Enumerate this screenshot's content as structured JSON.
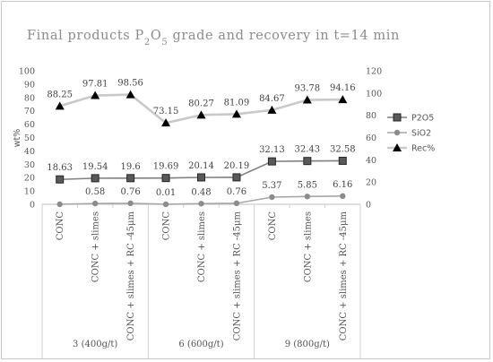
{
  "chart_data": {
    "type": "line",
    "title": {
      "prefix": "Final products P",
      "sub1": "2",
      "mid": "O",
      "sub2": "5",
      "suffix": " grade and recovery in t=14 min"
    },
    "ylabel_left": "wt%",
    "ylim_left": [
      0,
      100
    ],
    "yticks_left": [
      0,
      10,
      20,
      30,
      40,
      50,
      60,
      70,
      80,
      90,
      100
    ],
    "ylim_right": [
      0,
      120
    ],
    "yticks_right": [
      0,
      20,
      40,
      60,
      80,
      100,
      120
    ],
    "grid": false,
    "legend_position": "right",
    "categories": [
      "CONC",
      "CONC + slimes",
      "CONC + slimes + RC -45μm",
      "CONC",
      "CONC + slimes",
      "CONC + slimes + RC -45μm",
      "CONC",
      "CONC + slimes",
      "CONC + slimes + RC -45μm"
    ],
    "groups": [
      {
        "label": "3 (400g/t)",
        "span": [
          0,
          2
        ]
      },
      {
        "label": "6 (600g/t)",
        "span": [
          3,
          5
        ]
      },
      {
        "label": "9 (800g/t)",
        "span": [
          6,
          8
        ]
      }
    ],
    "series": [
      {
        "name": "P2O5",
        "axis": "left",
        "marker": "square",
        "color": "#7f7f7f",
        "values": [
          18.63,
          19.54,
          19.6,
          19.69,
          20.14,
          20.19,
          32.13,
          32.43,
          32.58
        ],
        "labels": [
          "18.63",
          "19.54",
          "19.6",
          "19.69",
          "20.14",
          "20.19",
          "32.13",
          "32.43",
          "32.58"
        ]
      },
      {
        "name": "SiO2",
        "axis": "left",
        "marker": "circle",
        "color": "#a6a6a6",
        "values": [
          0.01,
          0.58,
          0.76,
          0.01,
          0.48,
          0.76,
          5.37,
          5.85,
          6.16
        ],
        "labels": [
          "",
          "0.58",
          "0.76",
          "0.01",
          "0.48",
          "0.76",
          "5.37",
          "5.85",
          "6.16"
        ]
      },
      {
        "name": "Rec%",
        "axis": "right",
        "marker": "triangle",
        "color": "#c9c9c9",
        "values": [
          88.25,
          97.81,
          98.56,
          73.15,
          80.27,
          81.09,
          84.67,
          93.78,
          94.16
        ],
        "labels": [
          "88.25",
          "97.81",
          "98.56",
          "73.15",
          "80.27",
          "81.09",
          "84.67",
          "93.78",
          "94.16"
        ]
      }
    ]
  }
}
